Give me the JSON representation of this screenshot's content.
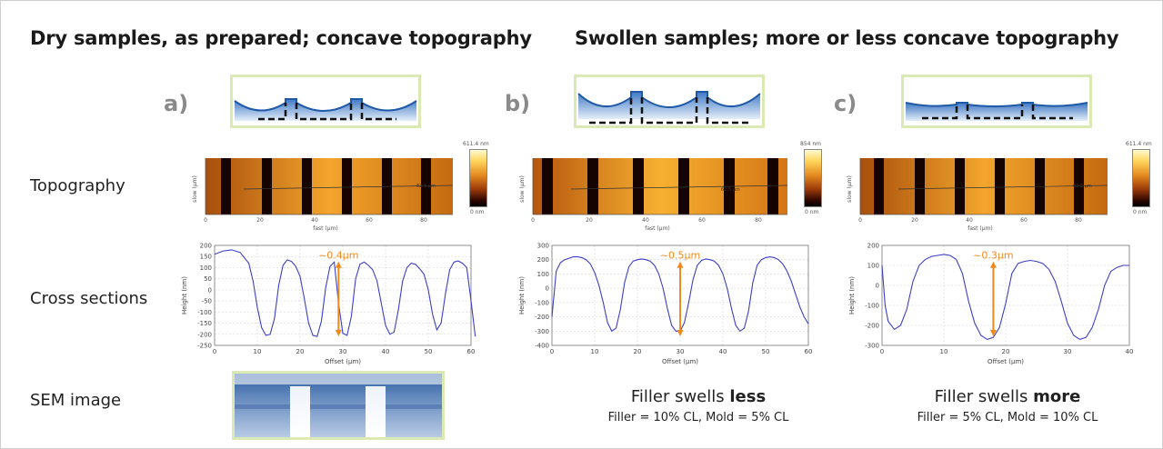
{
  "headers": {
    "left": "Dry samples, as prepared; concave topography",
    "right": "Swollen samples; more or less concave topography"
  },
  "row_labels": {
    "topography": "Topography",
    "cross_sections": "Cross sections",
    "sem": "SEM image"
  },
  "panels": [
    {
      "letter": "a)",
      "colorbar_max": "611.4 nm",
      "colorbar_min": "0 nm",
      "topo_xlabel": "fast (µm)",
      "topo_ylabel": "slow (µm)",
      "topo_xticks": [
        "0",
        "20",
        "40",
        "60",
        "80"
      ],
      "annotation": "~0.4µm",
      "profile_label": "62.5 µm"
    },
    {
      "letter": "b)",
      "colorbar_max": "854 nm",
      "colorbar_min": "0 nm",
      "topo_xlabel": "fast (µm)",
      "topo_ylabel": "slow (µm)",
      "topo_xticks": [
        "0",
        "20",
        "40",
        "60",
        "80"
      ],
      "annotation": "~0.5µm",
      "profile_label": "62.5 µm",
      "caption_prefix": "Filler swells ",
      "caption_bold": "less",
      "caption_sub": "Filler = 10% CL, Mold = 5% CL"
    },
    {
      "letter": "c)",
      "colorbar_max": "611.4 nm",
      "colorbar_min": "0 nm",
      "topo_xlabel": "fast (µm)",
      "topo_ylabel": "slow (µm)",
      "topo_xticks": [
        "0",
        "20",
        "40",
        "60",
        "80"
      ],
      "annotation": "~0.3µm",
      "profile_label": "62.5 µm",
      "caption_prefix": "Filler swells ",
      "caption_bold": "more",
      "caption_sub": "Filler = 5% CL, Mold = 10% CL"
    }
  ],
  "chart_data": [
    {
      "type": "line",
      "xlabel": "Offset (µm)",
      "ylabel": "Height (nm)",
      "xlim": [
        0,
        60
      ],
      "ylim": [
        -250,
        200
      ],
      "xticks": [
        0,
        10,
        20,
        30,
        40,
        50,
        60
      ],
      "yticks": [
        200,
        150,
        100,
        50,
        0,
        -50,
        -100,
        -150,
        -200,
        -250
      ],
      "grid": true,
      "series": [
        {
          "x": [
            0,
            2,
            4,
            6,
            8,
            9,
            10,
            11,
            12,
            13,
            14,
            15,
            16,
            17,
            18,
            19,
            20,
            21,
            22,
            23,
            24,
            25,
            26,
            27,
            28,
            29,
            30,
            31,
            32,
            33,
            34,
            35,
            36,
            37,
            38,
            39,
            40,
            41,
            42,
            43,
            44,
            45,
            46,
            47,
            48,
            49,
            50,
            51,
            52,
            53,
            54,
            55,
            56,
            57,
            58,
            59,
            60,
            61
          ],
          "y": [
            160,
            175,
            180,
            168,
            120,
            40,
            -80,
            -170,
            -205,
            -200,
            -130,
            20,
            110,
            135,
            128,
            105,
            60,
            -40,
            -150,
            -205,
            -210,
            -140,
            10,
            105,
            125,
            -60,
            -195,
            -205,
            -120,
            50,
            115,
            125,
            110,
            90,
            40,
            -60,
            -160,
            -200,
            -190,
            -90,
            40,
            100,
            120,
            115,
            95,
            70,
            0,
            -110,
            -180,
            -150,
            -20,
            90,
            125,
            130,
            120,
            100,
            -50,
            -210
          ]
        }
      ],
      "annotation": "~0.4µm"
    },
    {
      "type": "line",
      "xlabel": "Offset (µm)",
      "ylabel": "Height (nm)",
      "xlim": [
        0,
        60
      ],
      "ylim": [
        -400,
        300
      ],
      "xticks": [
        0,
        10,
        20,
        30,
        40,
        50,
        60
      ],
      "yticks": [
        300,
        200,
        100,
        0,
        -100,
        -200,
        -300,
        -400
      ],
      "grid": true,
      "series": [
        {
          "x": [
            0,
            1,
            2,
            3,
            4,
            5,
            6,
            7,
            8,
            9,
            10,
            11,
            12,
            13,
            14,
            15,
            16,
            17,
            18,
            19,
            20,
            21,
            22,
            23,
            24,
            25,
            26,
            27,
            28,
            29,
            30,
            31,
            32,
            33,
            34,
            35,
            36,
            37,
            38,
            39,
            40,
            41,
            42,
            43,
            44,
            45,
            46,
            47,
            48,
            49,
            50,
            51,
            52,
            53,
            54,
            55,
            56,
            57,
            58,
            59,
            60
          ],
          "y": [
            -200,
            120,
            180,
            200,
            210,
            220,
            220,
            215,
            200,
            170,
            110,
            20,
            -100,
            -240,
            -300,
            -280,
            -150,
            40,
            150,
            190,
            200,
            205,
            200,
            190,
            160,
            100,
            0,
            -140,
            -260,
            -300,
            -300,
            -240,
            -100,
            60,
            160,
            195,
            205,
            200,
            190,
            160,
            100,
            0,
            -140,
            -260,
            -300,
            -280,
            -160,
            40,
            160,
            200,
            215,
            220,
            215,
            200,
            170,
            120,
            50,
            -40,
            -130,
            -200,
            -250
          ]
        }
      ],
      "annotation": "~0.5µm"
    },
    {
      "type": "line",
      "xlabel": "Offset (µm)",
      "ylabel": "Height (nm)",
      "xlim": [
        0,
        40
      ],
      "ylim": [
        -300,
        200
      ],
      "xticks": [
        0,
        10,
        20,
        30,
        40
      ],
      "yticks": [
        200,
        100,
        0,
        -100,
        -200,
        -300
      ],
      "grid": true,
      "series": [
        {
          "x": [
            0,
            0.5,
            1,
            2,
            3,
            4,
            5,
            6,
            7,
            8,
            9,
            10,
            11,
            12,
            13,
            14,
            15,
            16,
            17,
            18,
            19,
            20,
            21,
            22,
            23,
            24,
            25,
            26,
            27,
            28,
            29,
            30,
            31,
            32,
            33,
            34,
            35,
            36,
            37,
            38,
            39,
            40
          ],
          "y": [
            100,
            -100,
            -180,
            -220,
            -200,
            -120,
            20,
            100,
            130,
            145,
            150,
            155,
            150,
            130,
            60,
            -80,
            -190,
            -250,
            -270,
            -260,
            -210,
            -90,
            60,
            110,
            120,
            125,
            120,
            110,
            80,
            20,
            -80,
            -190,
            -250,
            -270,
            -260,
            -210,
            -120,
            0,
            70,
            90,
            100,
            100
          ]
        }
      ],
      "annotation": "~0.3µm"
    }
  ]
}
